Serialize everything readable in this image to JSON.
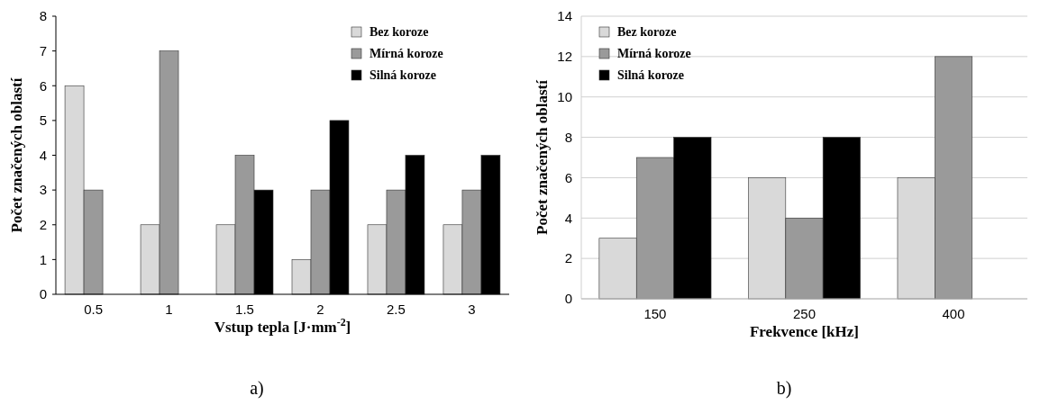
{
  "chart_data": [
    {
      "type": "bar",
      "categories": [
        "0.5",
        "1",
        "1.5",
        "2",
        "2.5",
        "3"
      ],
      "xlabel": "Vstup tepla  [J·mm$^{-2}$]",
      "ylabel": "Počet značených oblastí",
      "ylim": [
        0,
        8
      ],
      "yticks": [
        0,
        1,
        2,
        3,
        4,
        5,
        6,
        7,
        8
      ],
      "grid": false,
      "legend": "top right",
      "annotations": [
        "a)"
      ],
      "series": [
        {
          "name": "Bez koroze",
          "color": "#d9d9d9",
          "values": [
            6,
            2,
            2,
            1,
            2,
            2
          ]
        },
        {
          "name": "Mírná koroze",
          "color": "#9a9a9a",
          "values": [
            3,
            7,
            4,
            3,
            3,
            3
          ]
        },
        {
          "name": "Silná koroze",
          "color": "#000000",
          "values": [
            null,
            null,
            3,
            5,
            4,
            4
          ]
        }
      ]
    },
    {
      "type": "bar",
      "categories": [
        "150",
        "250",
        "400"
      ],
      "xlabel": "Frekvence [kHz]",
      "ylabel": "Počet značených oblastí",
      "ylim": [
        0,
        14
      ],
      "yticks": [
        0,
        2,
        4,
        6,
        8,
        10,
        12,
        14
      ],
      "grid": "y",
      "legend": "top left",
      "annotations": [
        "b)"
      ],
      "series": [
        {
          "name": "Bez koroze",
          "color": "#d9d9d9",
          "values": [
            3,
            6,
            6
          ]
        },
        {
          "name": "Mírná koroze",
          "color": "#9a9a9a",
          "values": [
            7,
            4,
            12
          ]
        },
        {
          "name": "Silná koroze",
          "color": "#000000",
          "values": [
            8,
            8,
            null
          ]
        }
      ]
    }
  ]
}
